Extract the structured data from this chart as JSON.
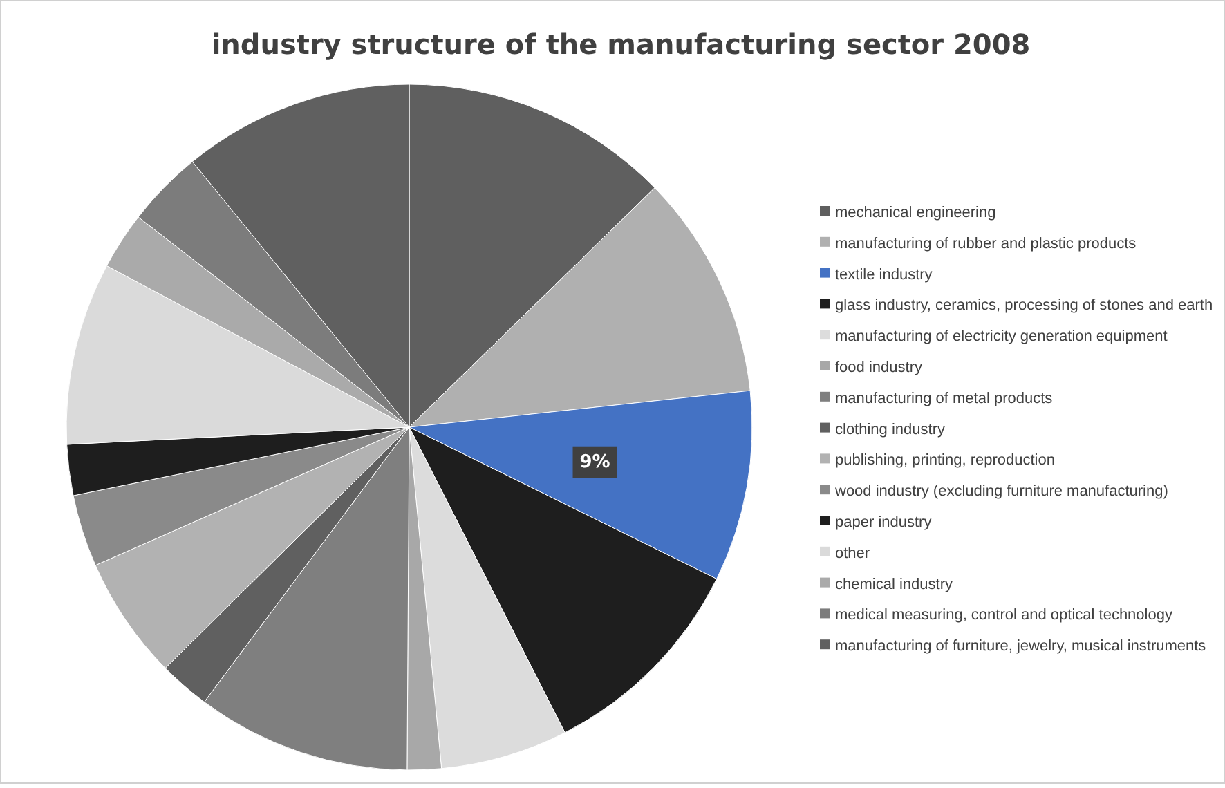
{
  "chart_data": {
    "type": "pie",
    "title": "industry structure of the manufacturing sector 2008",
    "categories": [
      "mechanical engineering",
      "manufacturing of rubber and plastic products",
      "textile industry",
      "glass industry, ceramics, processing of stones and earth",
      "manufacturing of electricity generation equipment",
      "food industry",
      "manufacturing of metal products",
      "clothing industry",
      "publishing, printing, reproduction",
      "wood industry (excluding furniture manufacturing)",
      "paper industry",
      "other",
      "chemical industry",
      "medical measuring, control and optical technology",
      "manufacturing of furniture, jewelry, musical instruments"
    ],
    "values": [
      12.7,
      10.6,
      9,
      10.2,
      6.0,
      1.6,
      10.1,
      2.4,
      5.8,
      3.4,
      2.4,
      8.6,
      2.7,
      3.6,
      10.9
    ],
    "colors": [
      "#5f5f5f",
      "#b0b0b0",
      "#4472c4",
      "#1e1e1e",
      "#dcdcdc",
      "#a8a8a8",
      "#7f7f7f",
      "#606060",
      "#b2b2b2",
      "#8a8a8a",
      "#1e1e1e",
      "#dadada",
      "#aaaaaa",
      "#7c7c7c",
      "#606060"
    ],
    "value_labels": [
      null,
      null,
      "9%",
      null,
      null,
      null,
      null,
      null,
      null,
      null,
      null,
      null,
      null,
      null,
      null
    ],
    "legend": "right"
  }
}
